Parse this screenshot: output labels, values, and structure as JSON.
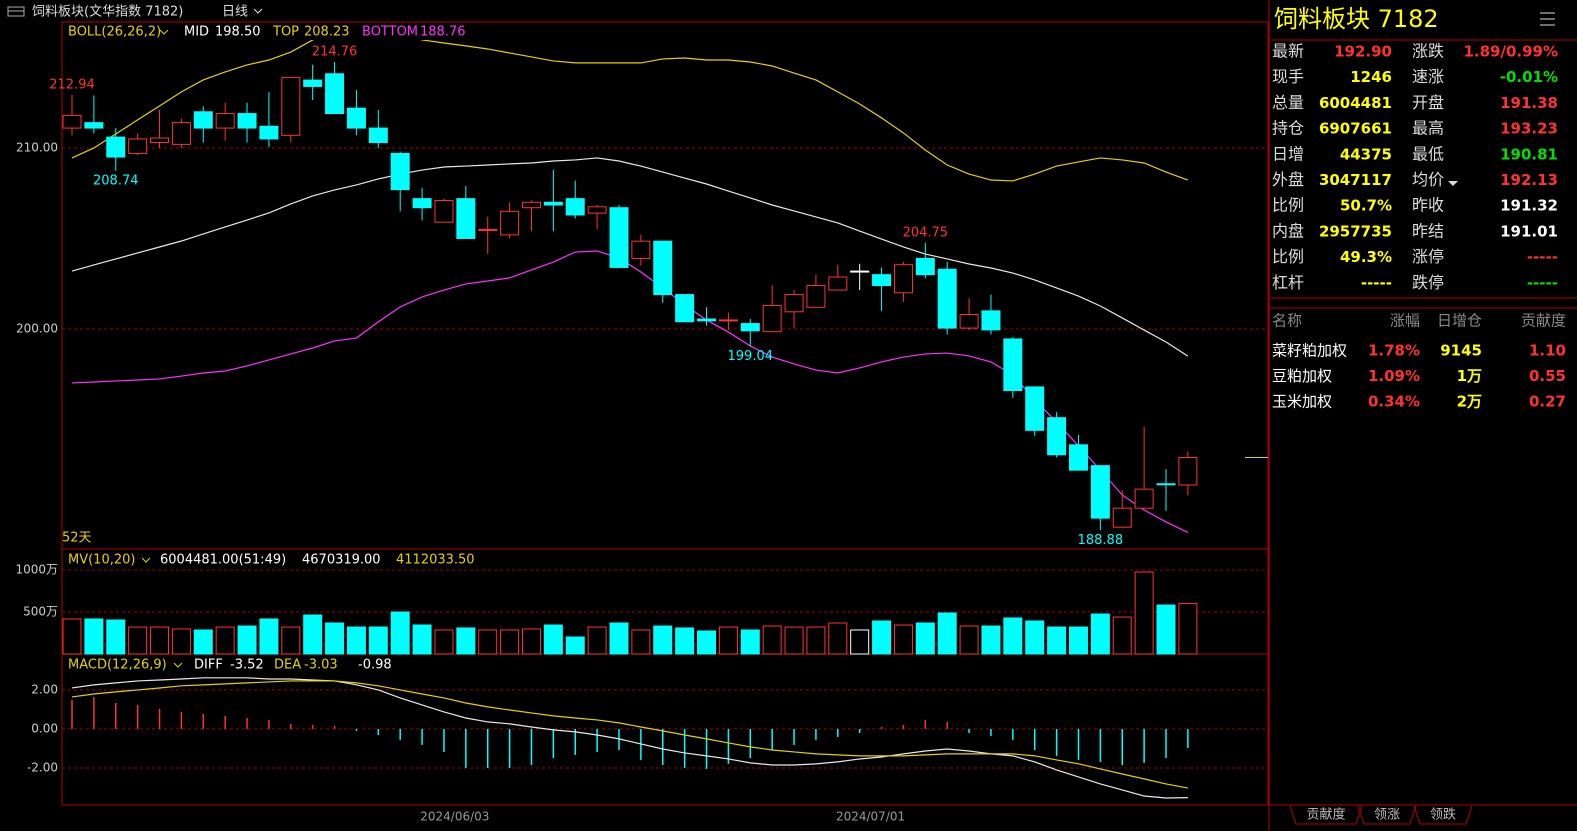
{
  "header": {
    "title": "饲料板块(文华指数 7182)",
    "period": "日线"
  },
  "chart_data": [
    {
      "type": "candlestick",
      "title": "BOLL(26,26,2)",
      "period_label": "52天",
      "up_color": "#ff3232",
      "down_color": "#00ffff",
      "categories": [
        null,
        null,
        null,
        null,
        null,
        null,
        null,
        null,
        null,
        null,
        null,
        null,
        null,
        null,
        null,
        null,
        null,
        null,
        "2024/06/03",
        null,
        null,
        null,
        null,
        null,
        null,
        null,
        null,
        null,
        null,
        null,
        null,
        null,
        null,
        null,
        null,
        null,
        null,
        "2024/07/01",
        null,
        null,
        null,
        null,
        null,
        null,
        null,
        null,
        null,
        null,
        null,
        null,
        null,
        null
      ],
      "open": [
        211.1,
        211.4,
        210.6,
        209.7,
        210.3,
        210.2,
        212.0,
        211.1,
        211.9,
        211.2,
        210.7,
        213.75,
        214.1,
        212.2,
        211.1,
        209.7,
        207.2,
        205.9,
        207.2,
        205.45,
        205.2,
        206.7,
        207.0,
        207.2,
        206.4,
        206.7,
        203.9,
        204.85,
        201.9,
        200.55,
        200.45,
        200.3,
        199.85,
        200.95,
        201.2,
        202.15,
        203.2,
        203.0,
        202.0,
        203.9,
        203.3,
        200.05,
        201.0,
        199.45,
        196.8,
        195.1,
        193.6,
        192.45,
        189.05,
        190.1,
        191.45,
        191.38
      ],
      "high": [
        212.94,
        212.9,
        211.1,
        210.8,
        212.1,
        211.6,
        212.3,
        212.5,
        212.5,
        213.1,
        213.9,
        214.6,
        214.76,
        213.2,
        212.1,
        209.8,
        207.8,
        207.2,
        207.9,
        206.2,
        207.0,
        207.1,
        208.8,
        208.2,
        206.85,
        206.85,
        205.2,
        204.85,
        201.9,
        201.2,
        200.9,
        200.55,
        202.4,
        202.15,
        203.0,
        203.55,
        203.6,
        203.4,
        203.7,
        204.75,
        203.7,
        201.7,
        201.9,
        199.55,
        196.8,
        195.4,
        194.15,
        192.45,
        191.1,
        194.6,
        192.25,
        193.23
      ],
      "low": [
        210.7,
        210.8,
        208.74,
        209.6,
        210.0,
        210.0,
        210.3,
        210.4,
        210.3,
        210.05,
        210.3,
        212.65,
        211.9,
        210.7,
        210.0,
        206.5,
        206.0,
        205.9,
        205.0,
        204.15,
        205.0,
        205.4,
        205.4,
        206.1,
        205.5,
        203.4,
        203.5,
        201.45,
        200.4,
        200.2,
        199.95,
        199.04,
        199.85,
        200.05,
        201.2,
        202.15,
        202.15,
        201.0,
        201.5,
        202.8,
        199.7,
        199.95,
        199.7,
        196.2,
        194.1,
        192.9,
        192.2,
        188.88,
        189.05,
        190.1,
        189.95,
        190.81
      ],
      "close": [
        211.8,
        211.1,
        209.5,
        210.5,
        210.55,
        211.4,
        211.1,
        211.9,
        211.1,
        210.5,
        213.9,
        213.4,
        211.9,
        211.1,
        210.3,
        207.7,
        206.7,
        207.1,
        205.0,
        205.5,
        206.5,
        207.0,
        206.85,
        206.3,
        206.75,
        203.4,
        204.85,
        201.9,
        200.4,
        200.45,
        200.5,
        199.9,
        201.3,
        201.9,
        202.4,
        202.87,
        203.2,
        202.4,
        203.55,
        203.0,
        200.05,
        200.8,
        199.95,
        196.6,
        194.4,
        193.05,
        192.2,
        189.55,
        190.1,
        191.15,
        191.4,
        192.9
      ],
      "series": [
        {
          "name": "MID",
          "color": "#e8e8e8",
          "legend_value": "198.50",
          "values": [
            203.2,
            203.54,
            203.87,
            204.2,
            204.53,
            204.86,
            205.25,
            205.64,
            206.02,
            206.41,
            206.91,
            207.35,
            207.68,
            207.96,
            208.29,
            208.56,
            208.78,
            208.95,
            209.0,
            209.06,
            209.12,
            209.17,
            209.28,
            209.34,
            209.45,
            209.28,
            209.0,
            208.67,
            208.34,
            208.01,
            207.62,
            207.24,
            206.85,
            206.52,
            206.19,
            205.86,
            205.41,
            204.97,
            204.53,
            204.14,
            203.87,
            203.59,
            203.37,
            203.09,
            202.71,
            202.27,
            201.82,
            201.27,
            200.61,
            199.94,
            199.28,
            198.5
          ]
        },
        {
          "name": "TOP",
          "color": "#e6d200",
          "legend_value": "208.23",
          "values": [
            209.45,
            210.0,
            210.77,
            211.55,
            212.32,
            213.1,
            213.76,
            214.2,
            214.59,
            214.86,
            215.3,
            215.97,
            216.35,
            216.52,
            216.52,
            216.35,
            215.97,
            215.8,
            215.64,
            215.47,
            215.25,
            215.03,
            214.81,
            214.7,
            214.7,
            214.7,
            214.7,
            214.92,
            214.97,
            214.86,
            214.86,
            214.75,
            214.53,
            214.14,
            213.76,
            213.1,
            212.43,
            211.66,
            210.83,
            209.89,
            209.06,
            208.56,
            208.23,
            208.18,
            208.56,
            209.0,
            209.23,
            209.45,
            209.34,
            209.17,
            208.67,
            208.23
          ]
        },
        {
          "name": "BOTTOM",
          "color": "#ff30ff",
          "legend_value": "188.76",
          "values": [
            197.02,
            197.07,
            197.13,
            197.18,
            197.24,
            197.4,
            197.57,
            197.68,
            197.96,
            198.29,
            198.62,
            198.95,
            199.34,
            199.5,
            200.39,
            201.22,
            201.77,
            202.15,
            202.49,
            202.65,
            202.82,
            203.26,
            203.7,
            204.25,
            204.31,
            203.92,
            203.15,
            202.27,
            201.33,
            200.5,
            199.83,
            199.06,
            198.45,
            198.07,
            197.73,
            197.57,
            197.85,
            198.18,
            198.45,
            198.62,
            198.67,
            198.51,
            198.18,
            197.46,
            196.08,
            194.86,
            193.54,
            192.21,
            190.83,
            190.0,
            189.34,
            188.76
          ]
        }
      ],
      "ylim": [
        187.9,
        216.96
      ],
      "yticks": [
        {
          "value": 200,
          "label": "200.00"
        },
        {
          "value": 210,
          "label": "210.00"
        }
      ],
      "grid": true
    },
    {
      "type": "bar",
      "title": "MV(10,20)",
      "legend": [
        "6004481.00(51:49)",
        "4670319.00",
        "4112033.50"
      ],
      "values": [
        417,
        417,
        405,
        321,
        321,
        298,
        286,
        321,
        333,
        417,
        321,
        464,
        369,
        321,
        321,
        500,
        345,
        286,
        310,
        286,
        286,
        298,
        345,
        202,
        321,
        369,
        286,
        333,
        310,
        274,
        321,
        286,
        333,
        321,
        321,
        369,
        286,
        393,
        345,
        369,
        488,
        333,
        333,
        429,
        393,
        321,
        321,
        476,
        440,
        976,
        583,
        600.4481
      ],
      "ylim": [
        0,
        1250
      ],
      "yticks": [
        {
          "value": 500,
          "label": "500万"
        },
        {
          "value": 1000,
          "label": "1000万"
        }
      ],
      "grid": true
    },
    {
      "type": "macd",
      "title": "MACD(12,26,9)",
      "series": [
        {
          "name": "DIFF",
          "color": "#e8e8e8",
          "values": [
            2.1,
            2.26,
            2.36,
            2.46,
            2.51,
            2.56,
            2.62,
            2.62,
            2.62,
            2.56,
            2.56,
            2.51,
            2.46,
            2.26,
            2.0,
            1.59,
            1.23,
            0.87,
            0.56,
            0.36,
            0.26,
            0.1,
            -0.05,
            -0.15,
            -0.31,
            -0.51,
            -0.77,
            -1.03,
            -1.23,
            -1.38,
            -1.54,
            -1.74,
            -1.85,
            -1.85,
            -1.79,
            -1.69,
            -1.54,
            -1.44,
            -1.28,
            -1.13,
            -1.03,
            -1.13,
            -1.28,
            -1.38,
            -1.69,
            -2.1,
            -2.46,
            -2.82,
            -3.13,
            -3.44,
            -3.54,
            -3.52
          ]
        },
        {
          "name": "DEA",
          "color": "#e6d200",
          "values": [
            1.64,
            1.79,
            1.9,
            2.0,
            2.1,
            2.21,
            2.26,
            2.31,
            2.36,
            2.41,
            2.46,
            2.46,
            2.46,
            2.36,
            2.21,
            2.0,
            1.79,
            1.59,
            1.33,
            1.13,
            0.97,
            0.82,
            0.67,
            0.56,
            0.46,
            0.31,
            0.1,
            -0.1,
            -0.31,
            -0.51,
            -0.72,
            -0.92,
            -1.08,
            -1.18,
            -1.28,
            -1.33,
            -1.38,
            -1.38,
            -1.38,
            -1.33,
            -1.28,
            -1.28,
            -1.28,
            -1.28,
            -1.38,
            -1.59,
            -1.79,
            -2.05,
            -2.31,
            -2.56,
            -2.82,
            -3.03
          ]
        }
      ],
      "histogram": {
        "values": [
          1.49,
          1.64,
          1.33,
          1.23,
          1.03,
          0.87,
          0.77,
          0.67,
          0.56,
          0.46,
          0.26,
          0.2,
          0.15,
          -0.1,
          -0.31,
          -0.56,
          -0.82,
          -1.18,
          -2.0,
          -2.0,
          -2.0,
          -1.85,
          -1.49,
          -1.33,
          -1.18,
          -1.08,
          -1.59,
          -1.85,
          -2.0,
          -2.05,
          -1.79,
          -1.49,
          -1.08,
          -0.82,
          -0.56,
          -0.41,
          -0.21,
          0.1,
          0.2,
          0.46,
          0.36,
          -0.21,
          -0.36,
          -0.56,
          -1.08,
          -1.38,
          -1.59,
          -1.69,
          -1.85,
          -1.74,
          -1.49,
          -0.98
        ]
      },
      "ylim": [
        -3.9,
        3.79
      ],
      "yticks": [
        {
          "value": -2,
          "label": "-2.00"
        },
        {
          "value": 0,
          "label": "0.00"
        },
        {
          "value": 2,
          "label": "2.00"
        }
      ],
      "grid": true
    }
  ],
  "quote": {
    "title": "饲料板块  7182",
    "rows": [
      [
        {
          "label": "最新",
          "value": "192.90",
          "color": "#ff3232"
        },
        {
          "label": "涨跌",
          "value": "1.89/0.99%",
          "color": "#ff3232"
        }
      ],
      [
        {
          "label": "现手",
          "value": "1246",
          "color": "#ffff00"
        },
        {
          "label": "速涨",
          "value": "-0.01%",
          "color": "#00e000"
        }
      ],
      [
        {
          "label": "总量",
          "value": "6004481",
          "color": "#ffff00"
        },
        {
          "label": "开盘",
          "value": "191.38",
          "color": "#ff3232"
        }
      ],
      [
        {
          "label": "持仓",
          "value": "6907661",
          "color": "#ffff00"
        },
        {
          "label": "最高",
          "value": "193.23",
          "color": "#ff3232"
        }
      ],
      [
        {
          "label": "日增",
          "value": "44375",
          "color": "#ffff00"
        },
        {
          "label": "最低",
          "value": "190.81",
          "color": "#00e000"
        }
      ],
      [
        {
          "label": "外盘",
          "value": "3047117",
          "color": "#ffff00"
        },
        {
          "label": "均价",
          "value": "192.13",
          "color": "#ff3232"
        }
      ],
      [
        {
          "label": "比例",
          "value": "50.7%",
          "color": "#ffff00"
        },
        {
          "label": "昨收",
          "value": "191.32",
          "color": "#ffffff"
        }
      ],
      [
        {
          "label": "内盘",
          "value": "2957735",
          "color": "#ffff00"
        },
        {
          "label": "昨结",
          "value": "191.01",
          "color": "#ffffff"
        }
      ],
      [
        {
          "label": "比例",
          "value": "49.3%",
          "color": "#ffff00"
        },
        {
          "label": "涨停",
          "value": "-----",
          "color": "#ff3232"
        }
      ],
      [
        {
          "label": "杠杆",
          "value": "-----",
          "color": "#ffff00"
        },
        {
          "label": "跌停",
          "value": "-----",
          "color": "#00e000"
        }
      ]
    ]
  },
  "constituents": {
    "columns": [
      "名称",
      "涨幅",
      "日增仓",
      "贡献度"
    ],
    "rows": [
      [
        "菜籽粕加权",
        "1.78%",
        "9145",
        "1.10"
      ],
      [
        "豆粕加权",
        "1.09%",
        "1万",
        "0.55"
      ],
      [
        "玉米加权",
        "0.34%",
        "2万",
        "0.27"
      ]
    ]
  },
  "tabs": [
    "贡献度",
    "领涨",
    "领跌"
  ]
}
